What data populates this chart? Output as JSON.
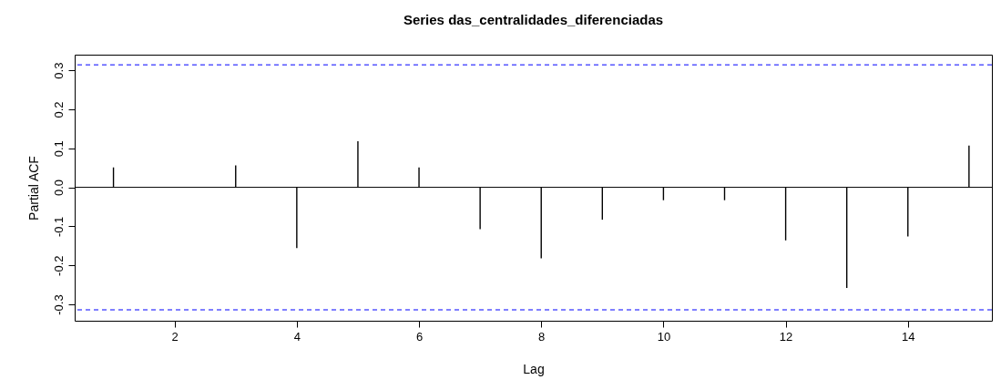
{
  "chart_data": {
    "type": "bar",
    "title": "Series  das_centralidades_diferenciadas",
    "xlabel": "Lag",
    "ylabel": "Partial ACF",
    "x": [
      1,
      2,
      3,
      4,
      5,
      6,
      7,
      8,
      9,
      10,
      11,
      12,
      13,
      14,
      15
    ],
    "values": [
      0.051,
      0.0,
      0.056,
      -0.156,
      0.118,
      0.051,
      -0.107,
      -0.182,
      -0.083,
      -0.033,
      -0.033,
      -0.136,
      -0.258,
      -0.126,
      0.107
    ],
    "color": "#000000",
    "xlim": [
      0.44,
      15.3
    ],
    "xticks": [
      2,
      4,
      6,
      8,
      10,
      12,
      14
    ],
    "ylim": [
      -0.342,
      0.34
    ],
    "yticks": [
      {
        "value": -0.3,
        "label": "-0.3"
      },
      {
        "value": -0.2,
        "label": "-0.2"
      },
      {
        "value": -0.1,
        "label": "-0.1"
      },
      {
        "value": 0,
        "label": "0.0"
      },
      {
        "value": 0.1,
        "label": "0.1"
      },
      {
        "value": 0.2,
        "label": "0.2"
      },
      {
        "value": 0.3,
        "label": "0.3"
      }
    ],
    "ref_lines": [
      {
        "axis": "y",
        "value": 0,
        "color": "#000000",
        "line_style": "solid"
      },
      {
        "axis": "y",
        "value": 0.314,
        "color": "#0000ff",
        "line_style": "dashed"
      },
      {
        "axis": "y",
        "value": -0.314,
        "color": "#0000ff",
        "line_style": "dashed"
      }
    ],
    "grid": false
  }
}
